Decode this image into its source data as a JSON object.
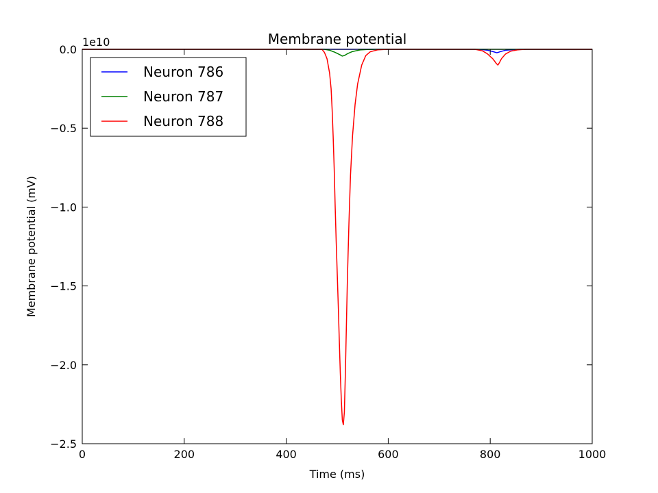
{
  "chart_data": {
    "type": "line",
    "title": "Membrane potential",
    "xlabel": "Time (ms)",
    "ylabel": "Membrane potential (mV)",
    "offset_label": "1e10",
    "xlim": [
      0,
      1000
    ],
    "ylim": [
      -2.5,
      0.0
    ],
    "x_ticks": [
      0,
      200,
      400,
      600,
      800,
      1000
    ],
    "x_tick_labels": [
      "0",
      "200",
      "400",
      "600",
      "800",
      "1000"
    ],
    "y_ticks": [
      0.0,
      -0.5,
      -1.0,
      -1.5,
      -2.0,
      -2.5
    ],
    "y_tick_labels": [
      "0.0",
      "−0.5",
      "−1.0",
      "−1.5",
      "−2.0",
      "−2.5"
    ],
    "grid": false,
    "legend_position": "top-left",
    "series": [
      {
        "name": "Neuron 786",
        "color": "#0000ff",
        "x": [
          0,
          770,
          785,
          795,
          805,
          813,
          820,
          830,
          845,
          860,
          880,
          1000
        ],
        "y": [
          0,
          0,
          -0.002,
          -0.006,
          -0.014,
          -0.022,
          -0.015,
          -0.006,
          -0.002,
          0,
          0,
          0
        ]
      },
      {
        "name": "Neuron 787",
        "color": "#008000",
        "x": [
          0,
          475,
          485,
          495,
          505,
          510,
          515,
          520,
          530,
          545,
          560,
          580,
          1000
        ],
        "y": [
          0,
          0,
          -0.006,
          -0.018,
          -0.034,
          -0.043,
          -0.038,
          -0.028,
          -0.014,
          -0.004,
          -0.001,
          0,
          0
        ]
      },
      {
        "name": "Neuron 788",
        "color": "#ff0000",
        "x": [
          0,
          470,
          475,
          480,
          485,
          488,
          490,
          492,
          494,
          496,
          498,
          500,
          502,
          504,
          506,
          508,
          510,
          512,
          514,
          516,
          518,
          520,
          523,
          526,
          530,
          535,
          540,
          548,
          556,
          565,
          580,
          600,
          700,
          770,
          785,
          795,
          805,
          812,
          815,
          818,
          822,
          830,
          840,
          855,
          870,
          1000
        ],
        "y": [
          0,
          0,
          -0.02,
          -0.06,
          -0.15,
          -0.25,
          -0.38,
          -0.55,
          -0.75,
          -1.0,
          -1.22,
          -1.42,
          -1.62,
          -1.84,
          -2.05,
          -2.22,
          -2.35,
          -2.38,
          -2.3,
          -2.05,
          -1.75,
          -1.45,
          -1.1,
          -0.8,
          -0.55,
          -0.35,
          -0.22,
          -0.1,
          -0.04,
          -0.015,
          -0.003,
          0,
          0,
          0,
          -0.01,
          -0.03,
          -0.06,
          -0.09,
          -0.1,
          -0.085,
          -0.06,
          -0.03,
          -0.012,
          -0.003,
          0,
          0
        ]
      }
    ]
  }
}
